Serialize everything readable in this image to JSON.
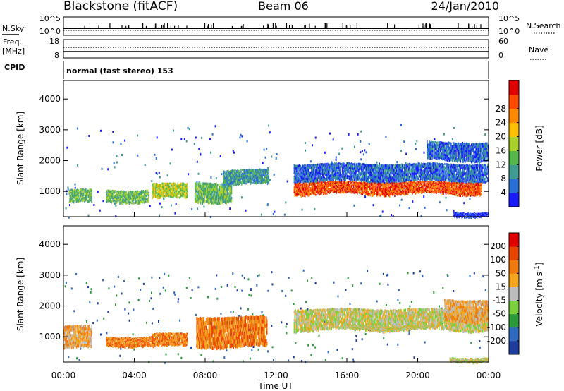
{
  "header": {
    "station": "Blackstone (fitACF)",
    "beam": "Beam 06",
    "date": "24/Jan/2010"
  },
  "mode_label": "normal (fast stereo) 153",
  "summary": {
    "nsky": {
      "label": "N.Sky",
      "ticks": [
        "10^5",
        "10^0"
      ]
    },
    "nsearch": {
      "label": "N.Search",
      "ticks": [
        "10^5",
        "10^0"
      ]
    },
    "freq": {
      "label_line1": "Freq.",
      "label_line2": "[MHz]",
      "ticks": [
        "18",
        "8"
      ]
    },
    "nave": {
      "label": "Nave",
      "ticks": [
        "60",
        "0"
      ]
    },
    "cpid": {
      "label": "CPID"
    }
  },
  "x_axis": {
    "title": "Time UT",
    "ticks": [
      "00:00",
      "04:00",
      "08:00",
      "12:00",
      "16:00",
      "20:00",
      "00:00"
    ],
    "range_hours": [
      0,
      24
    ]
  },
  "chart_data": [
    {
      "type": "heatmap",
      "quantity": "power",
      "ylabel": "Slant Range [km]",
      "yticks": [
        "1000",
        "2000",
        "3000",
        "4000"
      ],
      "ylim": [
        180,
        4600
      ],
      "colorbar": {
        "label": "Power [dB]",
        "ticks": [
          "4",
          "8",
          "12",
          "16",
          "20",
          "24",
          "28"
        ],
        "colors": [
          "#1a1aff",
          "#2a6fd6",
          "#3f9a8f",
          "#55b64b",
          "#a8d12e",
          "#ffc000",
          "#ff8a00",
          "#ff4a00",
          "#e00000"
        ]
      },
      "regions": [
        {
          "t0": 0.3,
          "t1": 1.6,
          "r0": 600,
          "r1": 1050,
          "level": 3
        },
        {
          "t0": 2.4,
          "t1": 4.8,
          "r0": 650,
          "r1": 1050,
          "level": 3
        },
        {
          "t0": 5.0,
          "t1": 7.0,
          "r0": 750,
          "r1": 1250,
          "level": 4
        },
        {
          "t0": 7.4,
          "t1": 9.5,
          "r0": 650,
          "r1": 1300,
          "level": 3
        },
        {
          "t0": 9.0,
          "t1": 11.6,
          "r0": 1200,
          "r1": 1700,
          "level": 2
        },
        {
          "t0": 13.0,
          "t1": 24.0,
          "r0": 1300,
          "r1": 1900,
          "level": 1
        },
        {
          "t0": 13.0,
          "t1": 23.6,
          "r0": 900,
          "r1": 1300,
          "level": 7
        },
        {
          "t0": 20.5,
          "t1": 24.0,
          "r0": 2000,
          "r1": 2600,
          "level": 1
        },
        {
          "t0": 22.0,
          "t1": 24.0,
          "r0": 200,
          "r1": 330,
          "level": 0
        }
      ]
    },
    {
      "type": "heatmap",
      "quantity": "velocity",
      "ylabel": "Slant Range [km]",
      "yticks": [
        "1000",
        "2000",
        "3000",
        "4000"
      ],
      "ylim": [
        180,
        4600
      ],
      "colorbar": {
        "label": "Velocity [m s^-1]",
        "ticks": [
          "200",
          "100",
          "50",
          "15",
          "-15",
          "-50",
          "-100",
          "-200"
        ],
        "colors": [
          "#1e3c9c",
          "#2f6ac0",
          "#2c9a3a",
          "#7ccf3c",
          "#bdbdbd",
          "#f4a71e",
          "#f07a10",
          "#e84500",
          "#e00000"
        ]
      },
      "regions": [
        {
          "t0": 0.0,
          "t1": 1.6,
          "r0": 600,
          "r1": 1350,
          "level": 5
        },
        {
          "t0": 2.4,
          "t1": 5.0,
          "r0": 700,
          "r1": 1000,
          "level": 6
        },
        {
          "t0": 5.0,
          "t1": 7.0,
          "r0": 650,
          "r1": 1100,
          "level": 6
        },
        {
          "t0": 7.5,
          "t1": 11.5,
          "r0": 650,
          "r1": 1650,
          "level": 6
        },
        {
          "t0": 13.0,
          "t1": 24.0,
          "r0": 1200,
          "r1": 1900,
          "level": 4
        },
        {
          "t0": 16.0,
          "t1": 21.0,
          "r0": 1250,
          "r1": 1350,
          "level": 4
        },
        {
          "t0": 21.5,
          "t1": 24.0,
          "r0": 1500,
          "r1": 2200,
          "level": 5
        },
        {
          "t0": 21.8,
          "t1": 24.0,
          "r0": 200,
          "r1": 330,
          "level": 4
        }
      ]
    }
  ]
}
